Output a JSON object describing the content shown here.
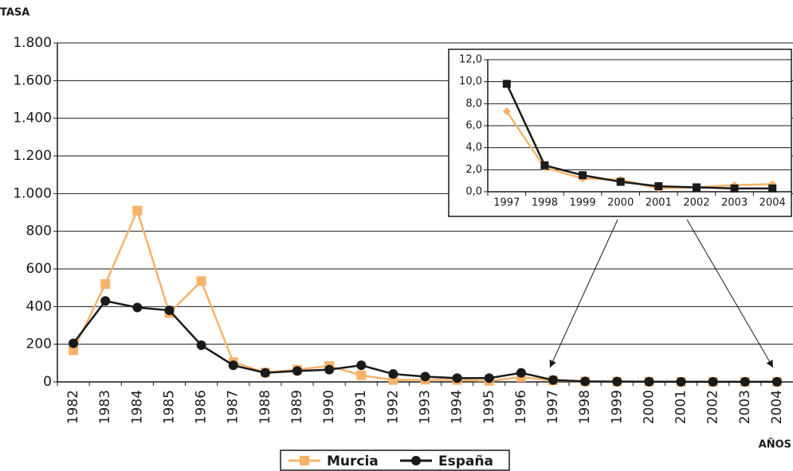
{
  "chart_data": [
    {
      "type": "line",
      "y_label": "TASA",
      "x_label": "AÑOS",
      "categories": [
        "1982",
        "1983",
        "1984",
        "1985",
        "1986",
        "1987",
        "1988",
        "1989",
        "1990",
        "1991",
        "1992",
        "1993",
        "1994",
        "1995",
        "1996",
        "1997",
        "1998",
        "1999",
        "2000",
        "2001",
        "2002",
        "2003",
        "2004"
      ],
      "series": [
        {
          "name": "Murcia",
          "color": "#f7b26a",
          "marker": "square",
          "values": [
            168,
            520,
            910,
            365,
            535,
            105,
            50,
            65,
            85,
            35,
            10,
            12,
            10,
            5,
            25,
            7.3,
            2.2,
            1.2,
            1.1,
            0.3,
            0.4,
            0.6,
            0.7
          ]
        },
        {
          "name": "España",
          "color": "#1a1a1a",
          "marker": "circle",
          "values": [
            205,
            430,
            395,
            380,
            195,
            88,
            48,
            58,
            65,
            88,
            42,
            28,
            20,
            20,
            48,
            9.8,
            2.4,
            1.5,
            0.9,
            0.5,
            0.4,
            0.3,
            0.3
          ]
        }
      ],
      "ylim": [
        0,
        1800
      ],
      "yticks": [
        0,
        200,
        400,
        600,
        800,
        {
          "value": 1000,
          "label": "1.000"
        },
        {
          "value": 1200,
          "label": "1.200"
        },
        {
          "value": 1400,
          "label": "1.400"
        },
        {
          "value": 1600,
          "label": "1.600"
        },
        {
          "value": 1800,
          "label": "1.800"
        }
      ],
      "grid": true,
      "legend": "bottom"
    },
    {
      "type": "line",
      "categories": [
        "1997",
        "1998",
        "1999",
        "2000",
        "2001",
        "2002",
        "2003",
        "2004"
      ],
      "series": [
        {
          "color": "#f7b26a",
          "marker": "diamond",
          "values": [
            7.3,
            2.2,
            1.2,
            1.1,
            0.3,
            0.4,
            0.6,
            0.7
          ]
        },
        {
          "color": "#1a1a1a",
          "marker": "square",
          "values": [
            9.8,
            2.4,
            1.5,
            0.9,
            0.5,
            0.4,
            0.3,
            0.3
          ]
        }
      ],
      "ylim": [
        0,
        12
      ],
      "yticks": [
        {
          "value": 0,
          "label": "0,0"
        },
        {
          "value": 2,
          "label": "2,0"
        },
        {
          "value": 4,
          "label": "4,0"
        },
        {
          "value": 6,
          "label": "6,0"
        },
        {
          "value": 8,
          "label": "8,0"
        },
        {
          "value": 10,
          "label": "10,0"
        },
        {
          "value": 12,
          "label": "12,0"
        }
      ],
      "grid": true
    }
  ]
}
